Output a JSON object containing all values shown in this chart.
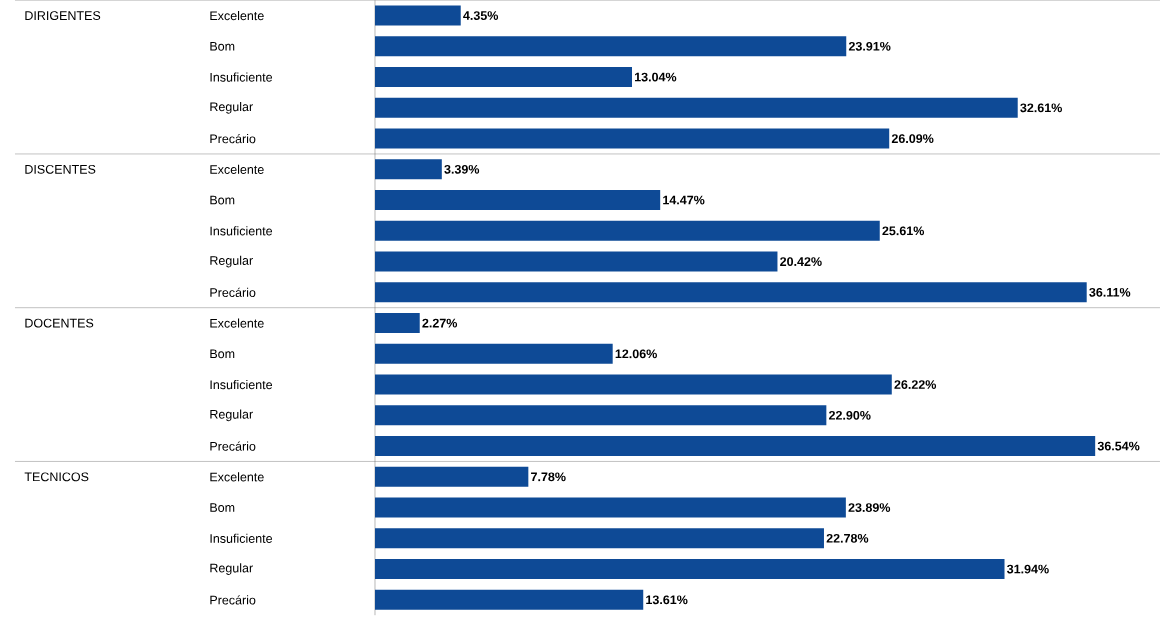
{
  "chart_data": {
    "type": "bar",
    "orientation": "horizontal",
    "color": "#0e4a96",
    "categories": [
      "Excelente",
      "Bom",
      "Insuficiente",
      "Regular",
      "Precário",
      "Excelente",
      "Bom",
      "Insuficiente",
      "Regular",
      "Precário",
      "Excelente",
      "Bom",
      "Insuficiente",
      "Regular",
      "Precário",
      "Excelente",
      "Bom",
      "Insuficiente",
      "Regular",
      "Precário"
    ],
    "values": [
      4.35,
      23.91,
      13.04,
      32.61,
      26.09,
      3.39,
      14.47,
      25.61,
      20.42,
      36.11,
      2.27,
      12.06,
      26.22,
      22.9,
      36.54,
      7.78,
      23.89,
      22.78,
      31.94,
      13.61
    ],
    "value_labels": [
      "4.35%",
      "23.91%",
      "13.04%",
      "32.61%",
      "26.09%",
      "3.39%",
      "14.47%",
      "25.61%",
      "20.42%",
      "36.11%",
      "2.27%",
      "12.06%",
      "26.22%",
      "22.90%",
      "36.54%",
      "7.78%",
      "23.89%",
      "22.78%",
      "31.94%",
      "13.61%"
    ],
    "annotations": [
      "DIRIGENTES",
      "DISCENTES",
      "DOCENTES",
      "TECNICOS"
    ]
  }
}
